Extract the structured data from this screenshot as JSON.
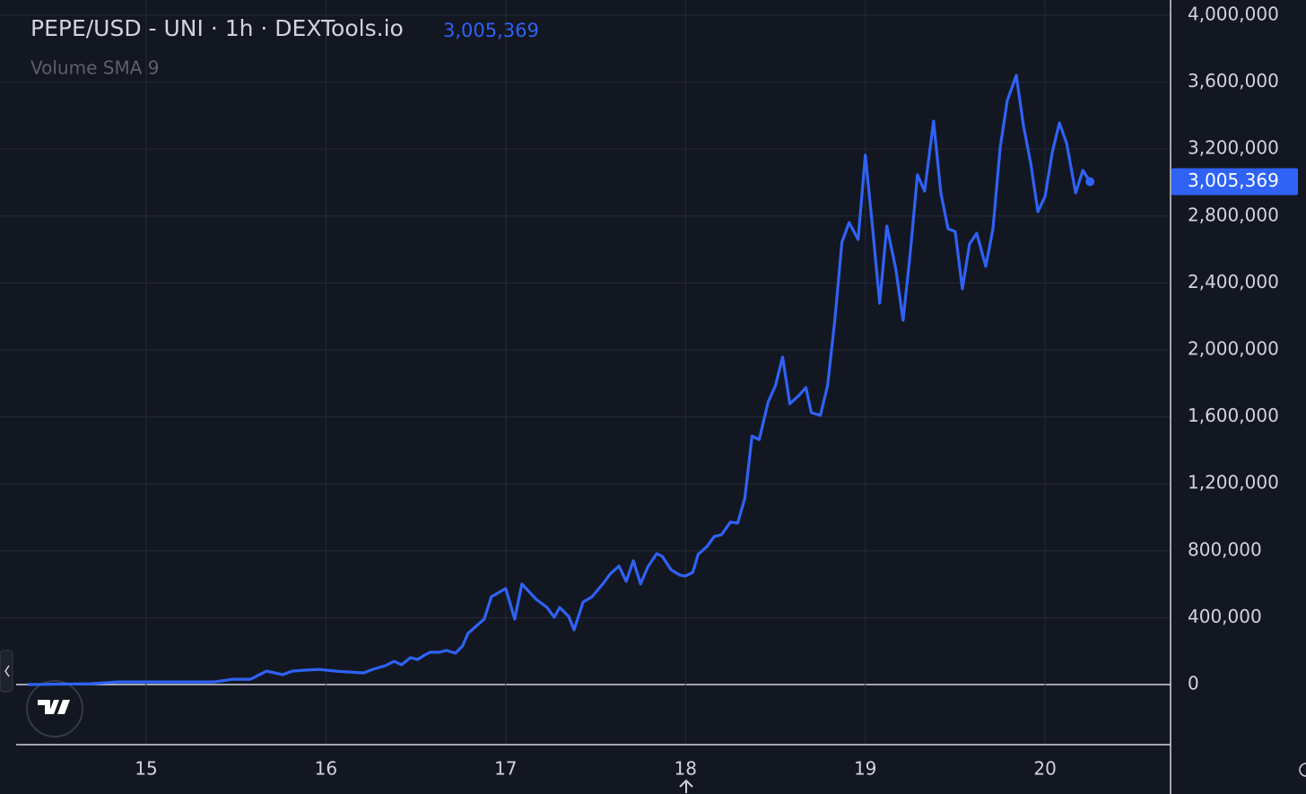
{
  "chart_data": {
    "type": "line",
    "title": "PEPE/USD - UNI · 1h · DEXTools.io",
    "subtitle": "Volume SMA 9",
    "last_value_label": "3,005,369",
    "x": [
      14.34,
      14.69,
      14.84,
      14.98,
      15.18,
      15.38,
      15.48,
      15.58,
      15.67,
      15.76,
      15.81,
      15.88,
      15.96,
      16.06,
      16.13,
      16.21,
      16.26,
      16.33,
      16.38,
      16.42,
      16.47,
      16.51,
      16.55,
      16.58,
      16.63,
      16.67,
      16.72,
      16.76,
      16.79,
      16.88,
      16.92,
      17.0,
      17.05,
      17.09,
      17.17,
      17.23,
      17.27,
      17.3,
      17.35,
      17.38,
      17.43,
      17.48,
      17.54,
      17.58,
      17.63,
      17.67,
      17.71,
      17.75,
      17.79,
      17.84,
      17.87,
      17.92,
      17.97,
      18.0,
      18.04,
      18.07,
      18.12,
      18.16,
      18.2,
      18.25,
      18.29,
      18.33,
      18.37,
      18.41,
      18.46,
      18.5,
      18.54,
      18.58,
      18.63,
      18.67,
      18.7,
      18.75,
      18.79,
      18.83,
      18.87,
      18.91,
      18.96,
      19.0,
      19.04,
      19.08,
      19.12,
      19.17,
      19.21,
      19.25,
      19.29,
      19.33,
      19.38,
      19.42,
      19.46,
      19.5,
      19.54,
      19.58,
      19.62,
      19.67,
      19.71,
      19.75,
      19.79,
      19.84,
      19.88,
      19.92,
      19.96,
      20.0,
      20.04,
      20.08,
      20.12,
      20.17,
      20.21,
      20.25
    ],
    "series": [
      {
        "name": "Volume SMA 9",
        "color": "#2f62f5",
        "values": [
          0,
          5000,
          16000,
          16000,
          16000,
          16000,
          32000,
          32000,
          80000,
          59000,
          80000,
          86000,
          91000,
          80000,
          75000,
          70000,
          91000,
          113000,
          139000,
          118000,
          161000,
          150000,
          177000,
          193000,
          193000,
          204000,
          188000,
          231000,
          306000,
          391000,
          525000,
          574000,
          391000,
          601000,
          509000,
          461000,
          402000,
          461000,
          407000,
          327000,
          493000,
          525000,
          601000,
          660000,
          708000,
          617000,
          740000,
          601000,
          702000,
          783000,
          767000,
          686000,
          654000,
          649000,
          670000,
          778000,
          826000,
          885000,
          895000,
          971000,
          965000,
          1115000,
          1485000,
          1464000,
          1689000,
          1786000,
          1957000,
          1678000,
          1727000,
          1775000,
          1625000,
          1609000,
          1786000,
          2172000,
          2643000,
          2761000,
          2660000,
          3164000,
          2735000,
          2279000,
          2740000,
          2483000,
          2177000,
          2579000,
          3046000,
          2949000,
          3367000,
          2938000,
          2724000,
          2708000,
          2365000,
          2633000,
          2697000,
          2499000,
          2724000,
          3207000,
          3491000,
          3641000,
          3341000,
          3115000,
          2826000,
          2917000,
          3180000,
          3357000,
          3233000,
          2938000,
          3073000,
          3005369
        ]
      }
    ],
    "xlim": [
      14.187,
      20.698
    ],
    "xticks": [
      15,
      16,
      17,
      18,
      19,
      20
    ],
    "ylim": [
      -359000,
      4091000
    ],
    "yticks": [
      0,
      {
        "value": 400000,
        "label": "400,000"
      },
      {
        "value": 800000,
        "label": "800,000"
      },
      {
        "value": 1200000,
        "label": "1,200,000"
      },
      {
        "value": 1600000,
        "label": "1,600,000"
      },
      {
        "value": 2000000,
        "label": "2,000,000"
      },
      {
        "value": 2400000,
        "label": "2,400,000"
      },
      {
        "value": 2800000,
        "label": "2,800,000"
      },
      {
        "value": 3200000,
        "label": "3,200,000"
      },
      {
        "value": 3600000,
        "label": "3,600,000"
      },
      {
        "value": 4000000,
        "label": "4,000,000"
      }
    ],
    "grid": true
  }
}
